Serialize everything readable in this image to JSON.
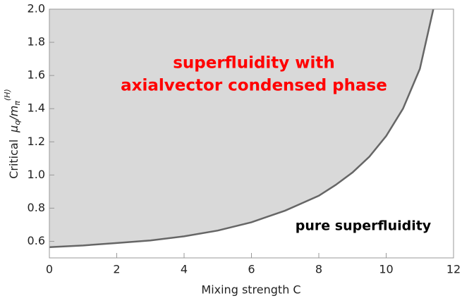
{
  "chart_data": {
    "type": "area_line",
    "x": [
      0,
      1,
      2,
      3,
      4,
      5,
      6,
      7,
      7.5,
      8,
      8.5,
      9,
      9.5,
      10,
      10.5,
      11,
      11.4
    ],
    "series": [
      {
        "color": "#666666",
        "fill": "#d9d9d9",
        "values": [
          0.565,
          0.575,
          0.59,
          0.605,
          0.63,
          0.665,
          0.715,
          0.785,
          0.83,
          0.875,
          0.94,
          1.015,
          1.11,
          1.235,
          1.4,
          1.64,
          2.0
        ]
      }
    ],
    "xlim": [
      0,
      12
    ],
    "xticks": [
      0,
      2,
      4,
      6,
      8,
      10,
      12
    ],
    "ylim": [
      0.5,
      2.0
    ],
    "yticks": [
      0.6,
      0.8,
      {
        "value": 1,
        "label": "1.0"
      },
      1.2,
      1.4,
      1.6,
      1.8,
      {
        "value": 2,
        "label": "2.0"
      }
    ],
    "x_label": "Mixing strength C",
    "y_label_parts": [
      "Critical",
      "μ",
      "q",
      "/m",
      "π",
      "(H)"
    ],
    "annotations": [
      {
        "lines": [
          "superfluidity with",
          "axialvector condensed phase"
        ],
        "color": "#ff0000"
      },
      {
        "lines": [
          "pure superfluidity"
        ],
        "color": "#000000"
      }
    ]
  }
}
